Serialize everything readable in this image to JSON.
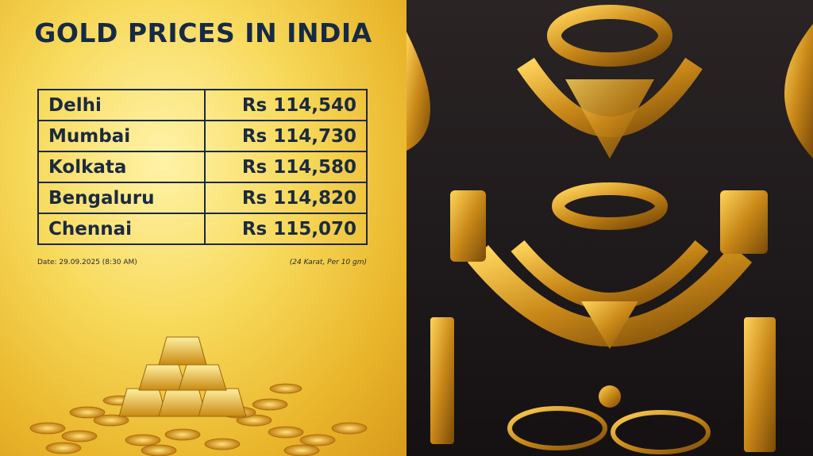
{
  "header": {
    "title": "GOLD PRICES IN INDIA"
  },
  "table": {
    "rows": [
      [
        "Delhi",
        "Rs 114,540"
      ],
      [
        "Mumbai",
        "Rs 114,730"
      ],
      [
        "Kolkata",
        "Rs 114,580"
      ],
      [
        "Bengaluru",
        "Rs 114,820"
      ],
      [
        "Chennai",
        "Rs 115,070"
      ]
    ]
  },
  "notes": {
    "date": "Date: 29.09.2025 (8:30 AM)",
    "unit": "(24 Karat, Per 10 gm)"
  }
}
